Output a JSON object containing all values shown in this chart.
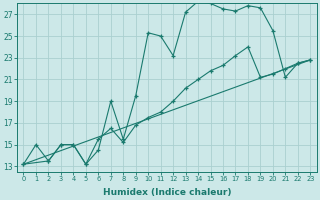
{
  "xlabel": "Humidex (Indice chaleur)",
  "bg_color": "#cce8e8",
  "line_color": "#1a7a6e",
  "grid_color": "#aad0d0",
  "xlim": [
    -0.5,
    23.5
  ],
  "ylim": [
    12.5,
    28.0
  ],
  "xticks": [
    0,
    1,
    2,
    3,
    4,
    5,
    6,
    7,
    8,
    9,
    10,
    11,
    12,
    13,
    14,
    15,
    16,
    17,
    18,
    19,
    20,
    21,
    22,
    23
  ],
  "yticks": [
    13,
    15,
    17,
    19,
    21,
    23,
    25,
    27
  ],
  "line1_x": [
    0,
    1,
    2,
    3,
    4,
    5,
    6,
    7,
    8,
    9,
    10,
    11,
    12,
    13,
    14,
    15,
    16,
    17,
    18,
    19,
    20,
    21,
    22,
    23
  ],
  "line1_y": [
    13.2,
    15.0,
    13.5,
    15.0,
    15.0,
    13.2,
    14.5,
    19.0,
    15.5,
    19.5,
    25.3,
    25.0,
    23.2,
    27.2,
    28.2,
    28.0,
    27.5,
    27.3,
    27.8,
    27.6,
    25.5,
    21.2,
    22.5,
    22.8
  ],
  "line2_x": [
    0,
    2,
    3,
    4,
    5,
    6,
    7,
    8,
    9,
    10,
    11,
    12,
    13,
    14,
    15,
    16,
    17,
    18,
    19,
    20,
    21,
    22,
    23
  ],
  "line2_y": [
    13.2,
    13.5,
    15.0,
    15.0,
    13.2,
    15.5,
    16.5,
    15.2,
    16.8,
    17.5,
    18.0,
    19.0,
    20.2,
    21.0,
    21.8,
    22.3,
    23.2,
    24.0,
    21.2,
    21.5,
    22.0,
    22.5,
    22.8
  ],
  "line3_x": [
    0,
    23
  ],
  "line3_y": [
    13.2,
    22.8
  ]
}
